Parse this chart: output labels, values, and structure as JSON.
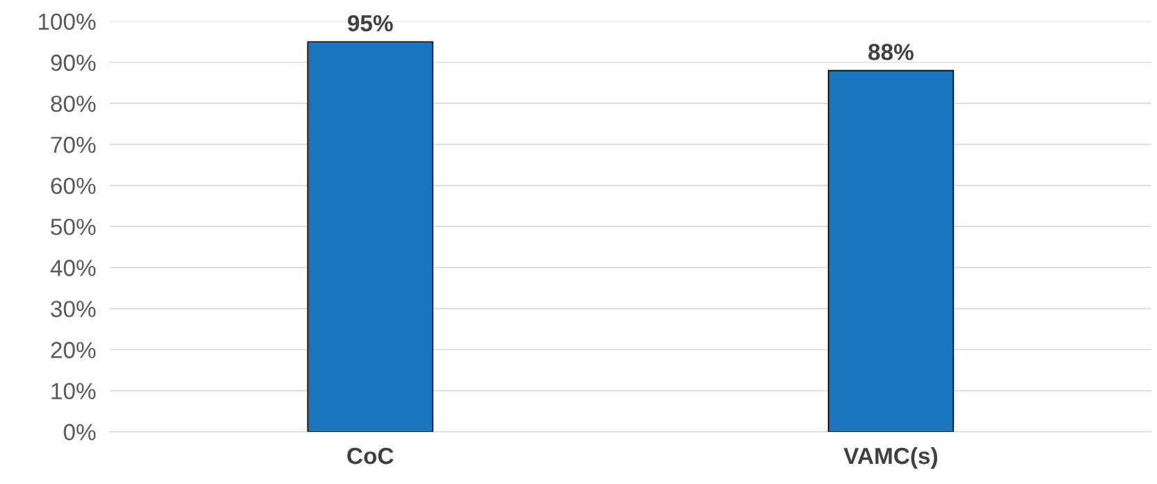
{
  "chart_data": {
    "type": "bar",
    "categories": [
      "CoC",
      "VAMC(s)"
    ],
    "values": [
      95,
      88
    ],
    "value_labels": [
      "95%",
      "88%"
    ],
    "color": "#1b75bc",
    "ylim": [
      0,
      100
    ],
    "yticks": [
      {
        "value": 0,
        "label": "0%"
      },
      {
        "value": 10,
        "label": "10%"
      },
      {
        "value": 20,
        "label": "20%"
      },
      {
        "value": 30,
        "label": "30%"
      },
      {
        "value": 40,
        "label": "40%"
      },
      {
        "value": 50,
        "label": "50%"
      },
      {
        "value": 60,
        "label": "60%"
      },
      {
        "value": 70,
        "label": "70%"
      },
      {
        "value": 80,
        "label": "80%"
      },
      {
        "value": 90,
        "label": "90%"
      },
      {
        "value": 100,
        "label": "100%"
      }
    ],
    "grid": "y"
  }
}
